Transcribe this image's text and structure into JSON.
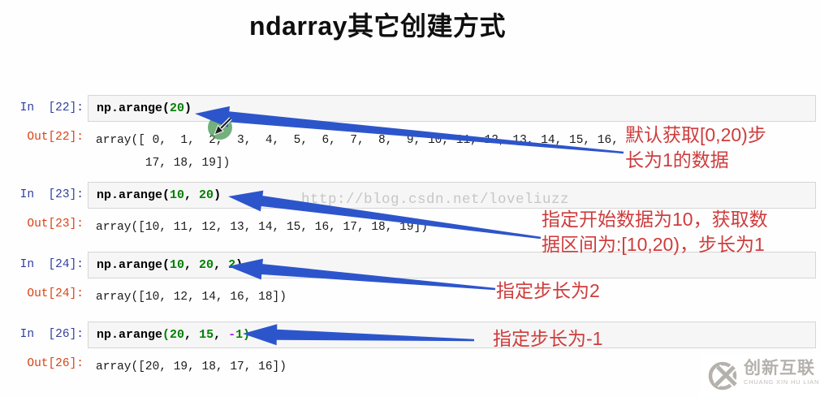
{
  "title": "ndarray其它创建方式",
  "watermark": "http://blog.csdn.net/loveliuzz",
  "colors": {
    "in_prompt": "#303F9F",
    "out_prompt": "#D84315",
    "number_green": "#008000",
    "operator_purple": "#AA22FF",
    "annotation_red": "#cf3c3c",
    "arrow_blue": "#2d55cb",
    "cursor_green": "#4c9a56",
    "logo_gray": "#b5b1ad"
  },
  "cells": [
    {
      "in_label": "In  [22]:",
      "out_label": "Out[22]:",
      "code_tokens": [
        {
          "text": "np.arange(",
          "type": "plain"
        },
        {
          "text": "20",
          "type": "number"
        },
        {
          "text": ")",
          "type": "plain"
        }
      ],
      "output_lines": [
        "array([ 0,  1,  2,  3,  4,  5,  6,  7,  8,  9, 10, 11, 12, 13, 14, 15, 16,",
        "       17, 18, 19])"
      ]
    },
    {
      "in_label": "In  [23]:",
      "out_label": "Out[23]:",
      "code_tokens": [
        {
          "text": "np.arange(",
          "type": "plain"
        },
        {
          "text": "10",
          "type": "number"
        },
        {
          "text": ", ",
          "type": "plain"
        },
        {
          "text": "20",
          "type": "number"
        },
        {
          "text": ")",
          "type": "plain"
        }
      ],
      "output_lines": [
        "array([10, 11, 12, 13, 14, 15, 16, 17, 18, 19])"
      ]
    },
    {
      "in_label": "In  [24]:",
      "out_label": "Out[24]:",
      "code_tokens": [
        {
          "text": "np.arange(",
          "type": "plain"
        },
        {
          "text": "10",
          "type": "number"
        },
        {
          "text": ", ",
          "type": "plain"
        },
        {
          "text": "20",
          "type": "number"
        },
        {
          "text": ", ",
          "type": "plain"
        },
        {
          "text": "2",
          "type": "number"
        },
        {
          "text": ")",
          "type": "plain"
        }
      ],
      "output_lines": [
        "array([10, 12, 14, 16, 18])"
      ]
    },
    {
      "in_label": "In  [26]:",
      "out_label": "Out[26]:",
      "code_tokens": [
        {
          "text": "np.arange",
          "type": "plain"
        },
        {
          "text": "(",
          "type": "number"
        },
        {
          "text": "20",
          "type": "number"
        },
        {
          "text": ", ",
          "type": "plain"
        },
        {
          "text": "15",
          "type": "number"
        },
        {
          "text": ", ",
          "type": "plain"
        },
        {
          "text": "-",
          "type": "operator"
        },
        {
          "text": "1",
          "type": "number"
        },
        {
          "text": ")",
          "type": "number"
        }
      ],
      "output_lines": [
        "array([20, 19, 18, 17, 16])"
      ]
    }
  ],
  "annotations": [
    {
      "lines": [
        "默认获取[0,20)步",
        "长为1的数据"
      ]
    },
    {
      "lines": [
        "指定开始数据为10，获取数",
        "据区间为:[10,20)，步长为1"
      ]
    },
    {
      "lines": [
        "指定步长为2"
      ]
    },
    {
      "lines": [
        "指定步长为-1"
      ]
    }
  ],
  "logo": {
    "name_cn": "创新互联",
    "name_en": "CHUANG XIN HU LIAN"
  }
}
